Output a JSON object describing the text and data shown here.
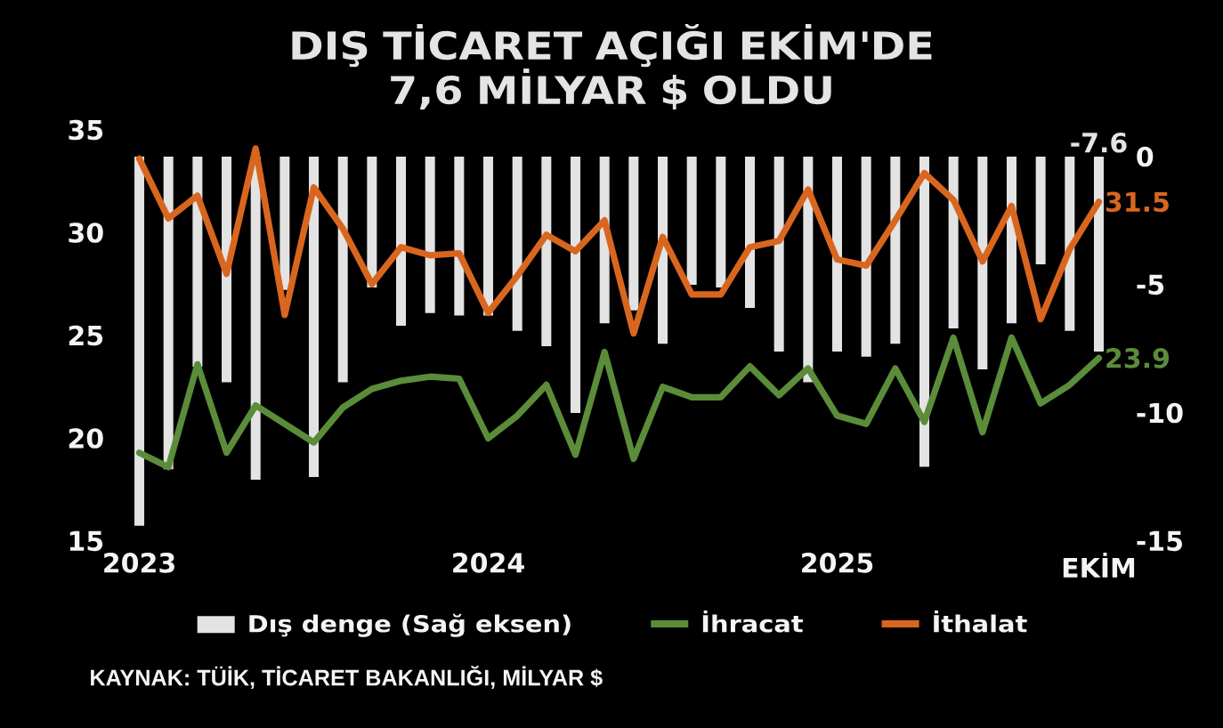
{
  "chart_data": {
    "type": "line",
    "title": "DIŞ TİCARET AÇIĞI EKİM'DE 7,6 MİLYAR $ OLDU",
    "categories": [
      "2023",
      null,
      null,
      null,
      null,
      null,
      null,
      null,
      null,
      null,
      null,
      null,
      "2024",
      null,
      null,
      null,
      null,
      null,
      null,
      null,
      null,
      null,
      null,
      null,
      "2025",
      null,
      null,
      null,
      null,
      null,
      null,
      null,
      null,
      "EKİM"
    ],
    "series": [
      {
        "name": "Dış denge (Sağ eksen)",
        "type": "bar",
        "axis": "y2",
        "color": "#e3e3e3",
        "values": [
          -14.4,
          -12.2,
          -8.2,
          -8.8,
          -12.6,
          -5.2,
          -12.5,
          -8.8,
          -5.1,
          -6.6,
          -6.1,
          -6.2,
          -6.2,
          -6.8,
          -7.4,
          -10.0,
          -6.5,
          -6.0,
          -7.3,
          -5.0,
          -5.1,
          -5.9,
          -7.6,
          -8.8,
          -7.6,
          -7.8,
          -7.3,
          -12.1,
          -6.7,
          -8.3,
          -6.5,
          -4.2,
          -6.8,
          -7.6
        ],
        "value_labels": [
          null,
          null,
          null,
          null,
          null,
          null,
          null,
          null,
          null,
          null,
          null,
          null,
          null,
          null,
          null,
          null,
          null,
          null,
          null,
          null,
          null,
          null,
          null,
          null,
          null,
          null,
          null,
          null,
          null,
          null,
          null,
          null,
          null,
          "-7.6"
        ]
      },
      {
        "name": "İhracat",
        "color": "#5b8c3a",
        "values": [
          19.3,
          18.6,
          23.6,
          19.3,
          21.6,
          20.7,
          19.8,
          21.5,
          22.4,
          22.8,
          23.0,
          22.9,
          20.0,
          21.1,
          22.6,
          19.2,
          24.2,
          19.0,
          22.5,
          22.0,
          22.0,
          23.5,
          22.1,
          23.4,
          21.1,
          20.7,
          23.4,
          20.8,
          24.9,
          20.3,
          24.9,
          21.7,
          22.6,
          23.9
        ],
        "value_labels": [
          null,
          null,
          null,
          null,
          null,
          null,
          null,
          null,
          null,
          null,
          null,
          null,
          null,
          null,
          null,
          null,
          null,
          null,
          null,
          null,
          null,
          null,
          null,
          null,
          null,
          null,
          null,
          null,
          null,
          null,
          null,
          null,
          null,
          "23.9"
        ]
      },
      {
        "name": "İthalat",
        "color": "#d9661f",
        "values": [
          33.6,
          30.7,
          31.8,
          28.0,
          34.1,
          26.0,
          32.2,
          30.2,
          27.5,
          29.3,
          28.9,
          29.0,
          26.1,
          27.9,
          29.9,
          29.1,
          30.6,
          25.1,
          29.8,
          27.0,
          27.0,
          29.3,
          29.6,
          32.1,
          28.7,
          28.4,
          30.6,
          32.9,
          31.6,
          28.6,
          31.3,
          25.8,
          29.2,
          31.5
        ],
        "value_labels": [
          null,
          null,
          null,
          null,
          null,
          null,
          null,
          null,
          null,
          null,
          null,
          null,
          null,
          null,
          null,
          null,
          null,
          null,
          null,
          null,
          null,
          null,
          null,
          null,
          null,
          null,
          null,
          null,
          null,
          null,
          null,
          null,
          null,
          "31.5"
        ]
      }
    ],
    "ylim": [
      15,
      35
    ],
    "yticks": [
      15,
      20,
      25,
      30,
      35
    ],
    "y2lim": [
      -15,
      0
    ],
    "y2ticks": [
      -15,
      -10,
      -5,
      0
    ],
    "legend": "bottom",
    "annotations": [
      "KAYNAK: TÜİK, TİCARET BAKANLIĞI, MİLYAR $"
    ]
  }
}
